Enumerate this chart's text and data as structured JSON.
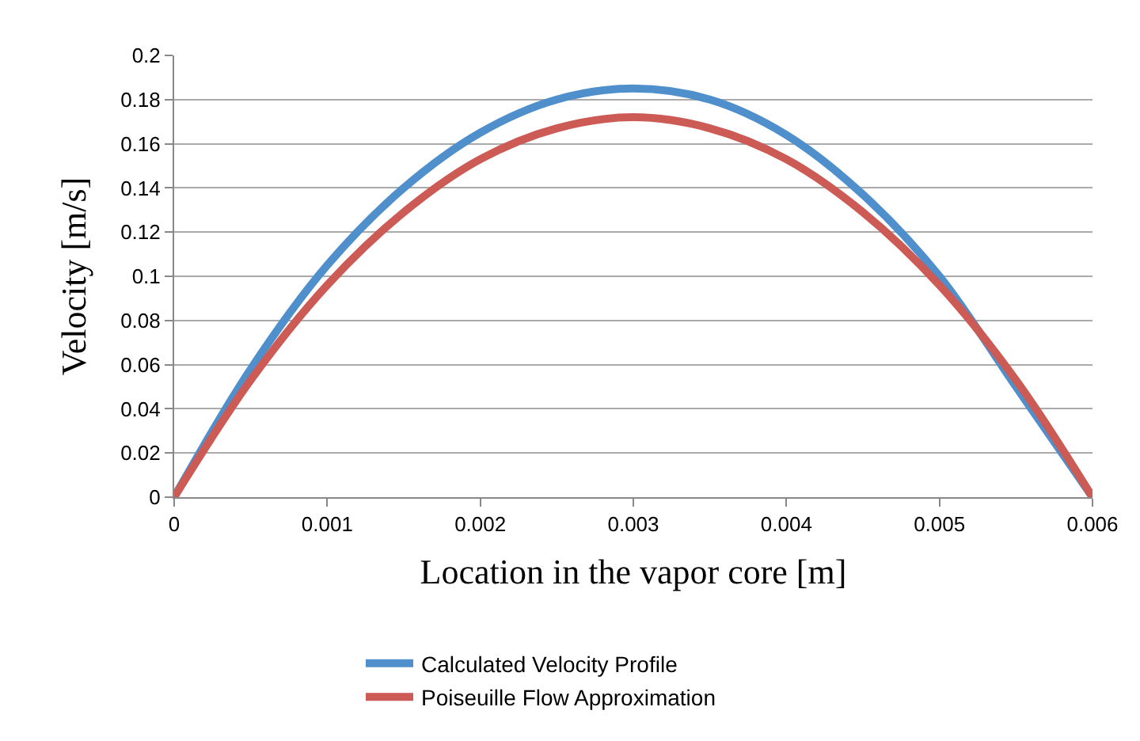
{
  "chart_data": {
    "type": "line",
    "xlabel": "Location in the vapor core [m]",
    "ylabel": "Velocity [m/s]",
    "x": [
      0,
      0.0005,
      0.001,
      0.0015,
      0.002,
      0.0025,
      0.003,
      0.0035,
      0.004,
      0.0045,
      0.005,
      0.0055,
      0.006
    ],
    "series": [
      {
        "name": "Calculated Velocity Profile",
        "color": "#4f8fcc",
        "values": [
          0,
          0.058,
          0.105,
          0.14,
          0.165,
          0.18,
          0.185,
          0.18,
          0.164,
          0.137,
          0.1,
          0.05,
          0
        ]
      },
      {
        "name": "Poiseuille Flow Approximation",
        "color": "#cc5a55",
        "values": [
          0,
          0.053,
          0.096,
          0.129,
          0.153,
          0.167,
          0.172,
          0.167,
          0.153,
          0.129,
          0.096,
          0.053,
          0
        ]
      }
    ],
    "xlim": [
      0,
      0.006
    ],
    "xticks": [
      0,
      0.001,
      0.002,
      0.003,
      0.004,
      0.005,
      0.006
    ],
    "ylim": [
      0,
      0.2
    ],
    "yticks": [
      0,
      0.02,
      0.04,
      0.06,
      0.08,
      0.1,
      0.12,
      0.14,
      0.16,
      0.18,
      0.2
    ],
    "grid": "y",
    "legend": "bottom",
    "marker": "none",
    "line_style": "solid"
  }
}
